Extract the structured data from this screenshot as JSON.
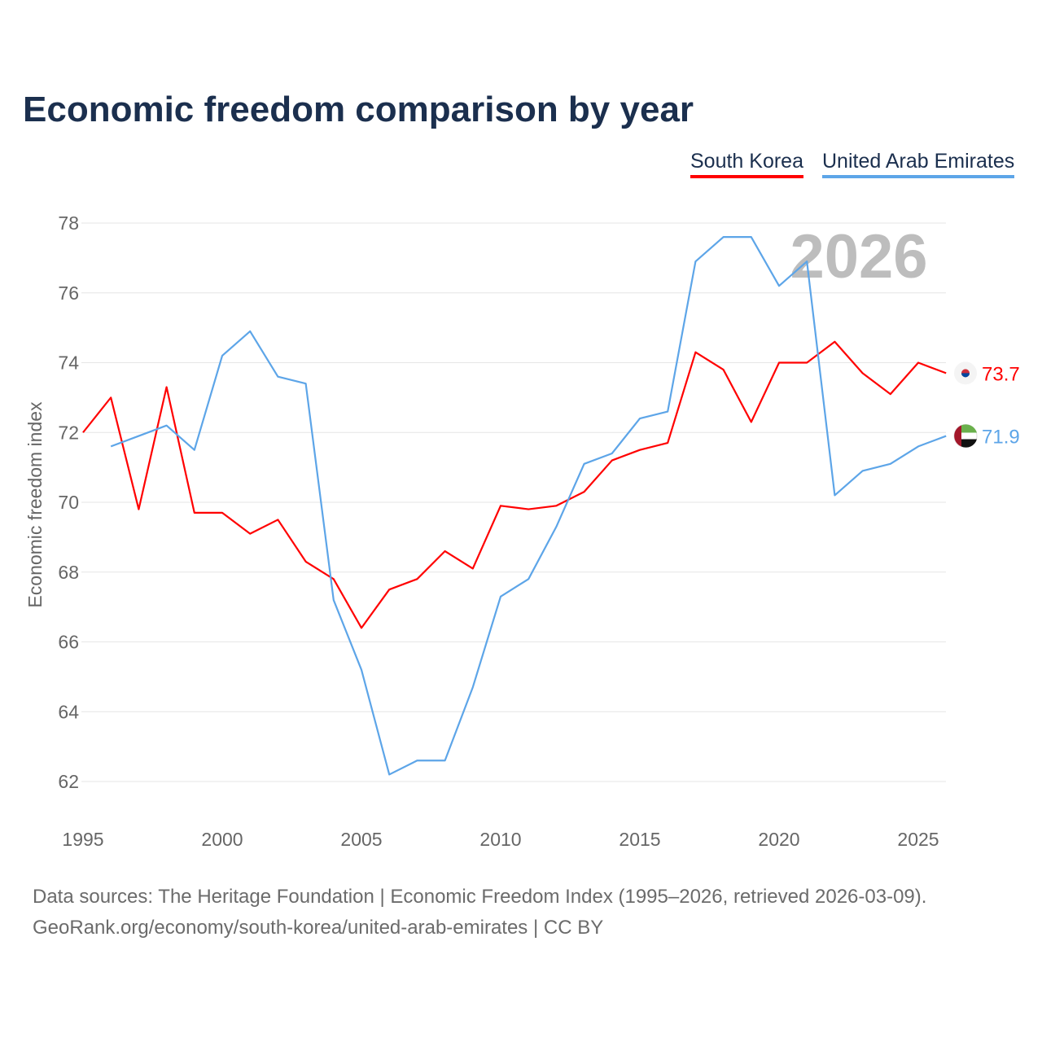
{
  "title": "Economic freedom comparison by year",
  "footer": {
    "line1": "Data sources: The Heritage Foundation | Economic Freedom Index (1995–2026, retrieved 2026-03-09).",
    "line2": "GeoRank.org/economy/south-korea/united-arab-emirates | CC BY"
  },
  "chart_data": {
    "type": "line",
    "title": "Economic freedom comparison by year",
    "xlabel": "",
    "ylabel": "Economic freedom index",
    "xlim": [
      1995,
      2026
    ],
    "ylim": [
      61,
      79
    ],
    "xticks": [
      "1995",
      "2000",
      "2005",
      "2010",
      "2015",
      "2020",
      "2025"
    ],
    "yticks": [
      "62",
      "64",
      "66",
      "68",
      "70",
      "72",
      "74",
      "76",
      "78"
    ],
    "watermark": "2026",
    "legend_position": "top-right",
    "series": [
      {
        "name": "South Korea",
        "color": "#ff0000",
        "end_label": "73.7",
        "flag": "south-korea-flag",
        "x_start": 1995,
        "values": [
          72.0,
          73.0,
          69.8,
          73.3,
          69.7,
          69.7,
          69.1,
          69.5,
          68.3,
          67.8,
          66.4,
          67.5,
          67.8,
          68.6,
          68.1,
          69.9,
          69.8,
          69.9,
          70.3,
          71.2,
          71.5,
          71.7,
          74.3,
          73.8,
          72.3,
          74.0,
          74.0,
          74.6,
          73.7,
          73.1,
          74.0,
          73.7
        ]
      },
      {
        "name": "United Arab Emirates",
        "color": "#5da5e8",
        "end_label": "71.9",
        "flag": "uae-flag",
        "x_start": 1996,
        "values": [
          71.6,
          71.9,
          72.2,
          71.5,
          74.2,
          74.9,
          73.6,
          73.4,
          67.2,
          65.2,
          62.2,
          62.6,
          62.6,
          64.7,
          67.3,
          67.8,
          69.3,
          71.1,
          71.4,
          72.4,
          72.6,
          76.9,
          77.6,
          77.6,
          76.2,
          76.9,
          70.2,
          70.9,
          71.1,
          71.6,
          71.9
        ]
      }
    ]
  }
}
